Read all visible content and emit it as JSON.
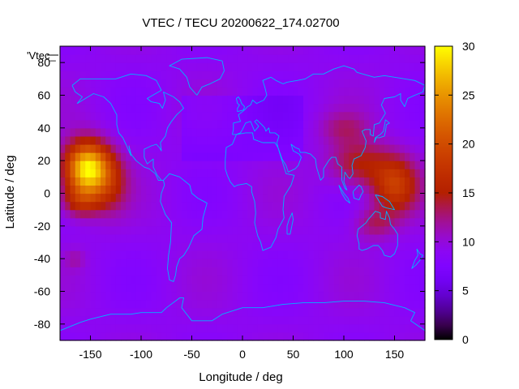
{
  "chart_data": {
    "type": "heatmap",
    "title": "VTEC / TECU 20200622_174.02700",
    "xlabel": "Longitude / deg",
    "ylabel": "Latitude / deg",
    "key_label": "'Vtec_",
    "xlim": [
      -180,
      180
    ],
    "ylim": [
      -90,
      90
    ],
    "x_ticks": [
      -150,
      -100,
      -50,
      0,
      50,
      100,
      150
    ],
    "y_ticks": [
      -80,
      -60,
      -40,
      -20,
      0,
      20,
      40,
      60,
      80
    ],
    "colorbar": {
      "min": 0,
      "max": 30,
      "ticks": [
        0,
        5,
        10,
        15,
        20,
        25,
        30
      ],
      "palette": "gnuplot-pm3d"
    },
    "background_level": 9,
    "enhancements": [
      {
        "lon": -153,
        "lat": 15,
        "peak": 21,
        "sx": 22,
        "sy": 16
      },
      {
        "lon": -160,
        "lat": -5,
        "peak": 6,
        "sx": 20,
        "sy": 10
      },
      {
        "lon": -130,
        "lat": 5,
        "peak": 4,
        "sx": 18,
        "sy": 18
      },
      {
        "lon": 150,
        "lat": 5,
        "peak": 9,
        "sx": 22,
        "sy": 17
      },
      {
        "lon": 115,
        "lat": 18,
        "peak": 6,
        "sx": 30,
        "sy": 14
      },
      {
        "lon": 130,
        "lat": -18,
        "peak": 4,
        "sx": 20,
        "sy": 10
      },
      {
        "lon": 100,
        "lat": 40,
        "peak": 3,
        "sx": 25,
        "sy": 10
      },
      {
        "lon": -165,
        "lat": -40,
        "peak": 2,
        "sx": 10,
        "sy": 6
      }
    ],
    "map_overlay": "world coastlines",
    "grid": false,
    "legend": "top-left"
  }
}
